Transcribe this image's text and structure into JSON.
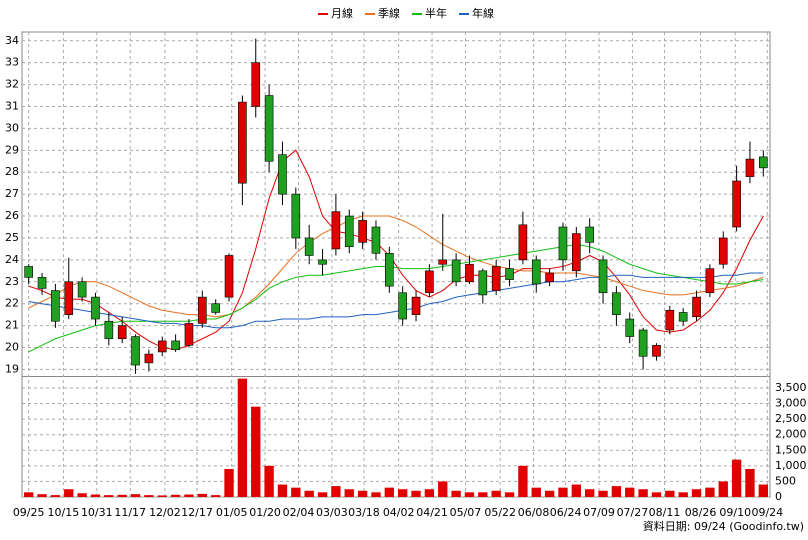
{
  "chart_data": {
    "type": "candlestick",
    "up_color": "#e00000",
    "down_color": "#20a020",
    "grid": true,
    "xlim": [
      -0.5,
      55.5
    ],
    "xticks": [
      {
        "value": 0,
        "label": "09/25"
      },
      {
        "value": 2.6,
        "label": "10/15"
      },
      {
        "value": 5.1,
        "label": "10/31"
      },
      {
        "value": 7.6,
        "label": "11/17"
      },
      {
        "value": 10.2,
        "label": "12/02"
      },
      {
        "value": 12.6,
        "label": "12/17"
      },
      {
        "value": 15.2,
        "label": "01/05"
      },
      {
        "value": 17.7,
        "label": "01/20"
      },
      {
        "value": 20.2,
        "label": "02/04"
      },
      {
        "value": 22.7,
        "label": "03/03"
      },
      {
        "value": 25.1,
        "label": "03/18"
      },
      {
        "value": 27.7,
        "label": "04/02"
      },
      {
        "value": 30.2,
        "label": "04/21"
      },
      {
        "value": 32.7,
        "label": "05/07"
      },
      {
        "value": 35.3,
        "label": "05/22"
      },
      {
        "value": 37.8,
        "label": "06/08"
      },
      {
        "value": 40.2,
        "label": "06/24"
      },
      {
        "value": 42.7,
        "label": "07/09"
      },
      {
        "value": 45.2,
        "label": "07/27"
      },
      {
        "value": 47.6,
        "label": "08/11"
      },
      {
        "value": 50.3,
        "label": "08/26"
      },
      {
        "value": 52.9,
        "label": "09/10"
      },
      {
        "value": 55.3,
        "label": "09/24"
      }
    ],
    "ylim": [
      18.7,
      34.4
    ],
    "yticks": [
      19,
      20,
      21,
      22,
      23,
      24,
      25,
      26,
      27,
      28,
      29,
      30,
      31,
      32,
      33,
      34
    ],
    "volume_ylim": [
      0,
      3820
    ],
    "volume_yticks": [
      0,
      500,
      {
        "value": 1000,
        "label": "1,000"
      },
      {
        "value": 1500,
        "label": "1,500"
      },
      {
        "value": 2000,
        "label": "2,000"
      },
      {
        "value": 2500,
        "label": "2,500"
      },
      {
        "value": 3000,
        "label": "3,000"
      },
      {
        "value": 3500,
        "label": "3,500"
      }
    ],
    "candles": {
      "open": [
        23.7,
        23.2,
        22.6,
        21.5,
        23.0,
        22.3,
        21.2,
        20.4,
        20.5,
        19.3,
        19.8,
        20.3,
        20.1,
        21.1,
        22.0,
        22.3,
        27.5,
        31.0,
        31.5,
        28.8,
        27.0,
        25.0,
        24.0,
        24.5,
        26.0,
        24.8,
        25.5,
        24.3,
        22.5,
        21.5,
        22.5,
        23.8,
        24.0,
        23.0,
        23.5,
        22.6,
        23.6,
        24.0,
        24.0,
        23.0,
        25.5,
        23.5,
        25.5,
        24.0,
        22.5,
        21.3,
        20.8,
        19.6,
        20.8,
        21.6,
        21.4,
        22.5,
        23.8,
        25.5,
        27.8,
        28.7
      ],
      "high": [
        23.8,
        23.4,
        22.9,
        24.1,
        23.2,
        22.5,
        21.6,
        21.4,
        20.6,
        19.9,
        20.5,
        20.6,
        21.3,
        22.6,
        22.2,
        24.3,
        31.5,
        34.1,
        32.0,
        29.4,
        27.3,
        25.6,
        24.5,
        27.0,
        26.3,
        26.2,
        25.8,
        24.6,
        22.8,
        22.6,
        23.8,
        26.1,
        24.3,
        24.2,
        23.6,
        24.0,
        24.0,
        26.2,
        24.2,
        23.6,
        25.7,
        25.5,
        25.9,
        24.2,
        22.8,
        21.6,
        20.9,
        20.2,
        21.9,
        21.8,
        22.6,
        23.8,
        25.3,
        28.3,
        29.4,
        29.0
      ],
      "low": [
        22.9,
        22.4,
        20.9,
        21.3,
        22.1,
        21.0,
        20.1,
        20.2,
        18.8,
        18.9,
        19.6,
        19.8,
        20.0,
        20.9,
        21.5,
        22.1,
        26.5,
        30.5,
        28.0,
        26.5,
        24.5,
        23.8,
        23.3,
        24.2,
        24.3,
        24.5,
        24.0,
        22.5,
        21.0,
        21.2,
        22.3,
        23.5,
        22.8,
        22.9,
        22.0,
        22.4,
        22.8,
        23.8,
        22.5,
        22.8,
        23.5,
        23.2,
        24.3,
        22.0,
        21.0,
        20.2,
        19.0,
        19.4,
        20.6,
        21.0,
        21.2,
        22.3,
        23.6,
        25.3,
        27.5,
        27.8
      ],
      "close": [
        23.2,
        22.7,
        21.2,
        23.0,
        22.3,
        21.3,
        20.4,
        21.0,
        19.2,
        19.7,
        20.3,
        19.9,
        21.1,
        22.3,
        21.6,
        24.2,
        31.2,
        33.0,
        28.5,
        27.0,
        25.0,
        24.2,
        23.8,
        26.2,
        24.6,
        25.8,
        24.3,
        22.8,
        21.3,
        22.3,
        23.5,
        24.0,
        23.0,
        23.8,
        22.4,
        23.7,
        23.1,
        25.6,
        22.9,
        23.4,
        24.0,
        25.2,
        24.8,
        22.5,
        21.5,
        20.5,
        19.6,
        20.1,
        21.7,
        21.2,
        22.3,
        23.6,
        25.0,
        27.6,
        28.6,
        28.2
      ]
    },
    "volume": [
      150,
      90,
      60,
      250,
      120,
      80,
      60,
      70,
      90,
      60,
      50,
      70,
      80,
      100,
      60,
      900,
      3800,
      2900,
      1000,
      400,
      300,
      200,
      150,
      350,
      250,
      200,
      150,
      300,
      250,
      200,
      250,
      500,
      200,
      150,
      150,
      200,
      150,
      1000,
      300,
      200,
      300,
      400,
      250,
      200,
      350,
      300,
      250,
      150,
      200,
      150,
      250,
      300,
      500,
      1200,
      900,
      400
    ],
    "volume_color": "#e00000",
    "series": [
      {
        "name": "月線",
        "color": "#e00000",
        "values": [
          22.8,
          22.6,
          22.3,
          22.2,
          22.2,
          22.0,
          21.6,
          21.2,
          20.7,
          20.3,
          20.0,
          19.9,
          20.1,
          20.4,
          20.7,
          21.2,
          22.5,
          24.5,
          26.8,
          28.5,
          29.0,
          27.8,
          26.0,
          25.3,
          25.2,
          25.0,
          24.8,
          24.2,
          23.3,
          22.6,
          22.3,
          22.6,
          23.1,
          23.3,
          23.3,
          23.2,
          23.3,
          23.6,
          23.6,
          23.6,
          23.7,
          23.9,
          24.2,
          23.9,
          23.2,
          22.4,
          21.4,
          20.8,
          20.7,
          20.8,
          21.2,
          21.7,
          22.5,
          23.6,
          24.9,
          26.0
        ]
      },
      {
        "name": "季線",
        "color": "#e87020",
        "values": [
          21.8,
          22.1,
          22.4,
          22.8,
          23.0,
          23.0,
          22.8,
          22.5,
          22.2,
          21.9,
          21.7,
          21.6,
          21.5,
          21.5,
          21.4,
          21.5,
          21.8,
          22.3,
          22.9,
          23.6,
          24.3,
          24.8,
          25.2,
          25.5,
          25.8,
          26.0,
          26.0,
          26.0,
          25.8,
          25.5,
          25.1,
          24.7,
          24.4,
          24.1,
          23.9,
          23.7,
          23.6,
          23.5,
          23.5,
          23.4,
          23.4,
          23.4,
          23.3,
          23.2,
          23.0,
          22.8,
          22.6,
          22.5,
          22.4,
          22.4,
          22.5,
          22.6,
          22.7,
          22.8,
          23.0,
          23.2
        ]
      },
      {
        "name": "半年",
        "color": "#10c010",
        "values": [
          19.8,
          20.1,
          20.4,
          20.6,
          20.8,
          21.0,
          21.1,
          21.2,
          21.2,
          21.2,
          21.2,
          21.2,
          21.2,
          21.3,
          21.3,
          21.5,
          21.8,
          22.2,
          22.7,
          23.0,
          23.2,
          23.3,
          23.3,
          23.4,
          23.5,
          23.6,
          23.7,
          23.7,
          23.6,
          23.6,
          23.6,
          23.7,
          23.8,
          23.9,
          24.0,
          24.1,
          24.2,
          24.3,
          24.4,
          24.5,
          24.6,
          24.7,
          24.6,
          24.4,
          24.1,
          23.8,
          23.6,
          23.4,
          23.3,
          23.2,
          23.1,
          23.0,
          22.9,
          22.9,
          23.0,
          23.1
        ]
      },
      {
        "name": "年線",
        "color": "#2060c0",
        "values": [
          22.1,
          22.0,
          21.9,
          21.8,
          21.7,
          21.6,
          21.5,
          21.4,
          21.3,
          21.2,
          21.1,
          21.1,
          21.0,
          21.0,
          20.9,
          20.9,
          21.0,
          21.2,
          21.2,
          21.3,
          21.3,
          21.3,
          21.4,
          21.4,
          21.4,
          21.5,
          21.5,
          21.6,
          21.7,
          21.8,
          22.0,
          22.1,
          22.3,
          22.4,
          22.5,
          22.6,
          22.7,
          22.8,
          22.9,
          23.0,
          23.0,
          23.1,
          23.2,
          23.2,
          23.3,
          23.3,
          23.2,
          23.2,
          23.2,
          23.2,
          23.2,
          23.2,
          23.3,
          23.3,
          23.4,
          23.4
        ]
      }
    ],
    "footer": "資料日期: 09/24  (Goodinfo.tw)"
  }
}
